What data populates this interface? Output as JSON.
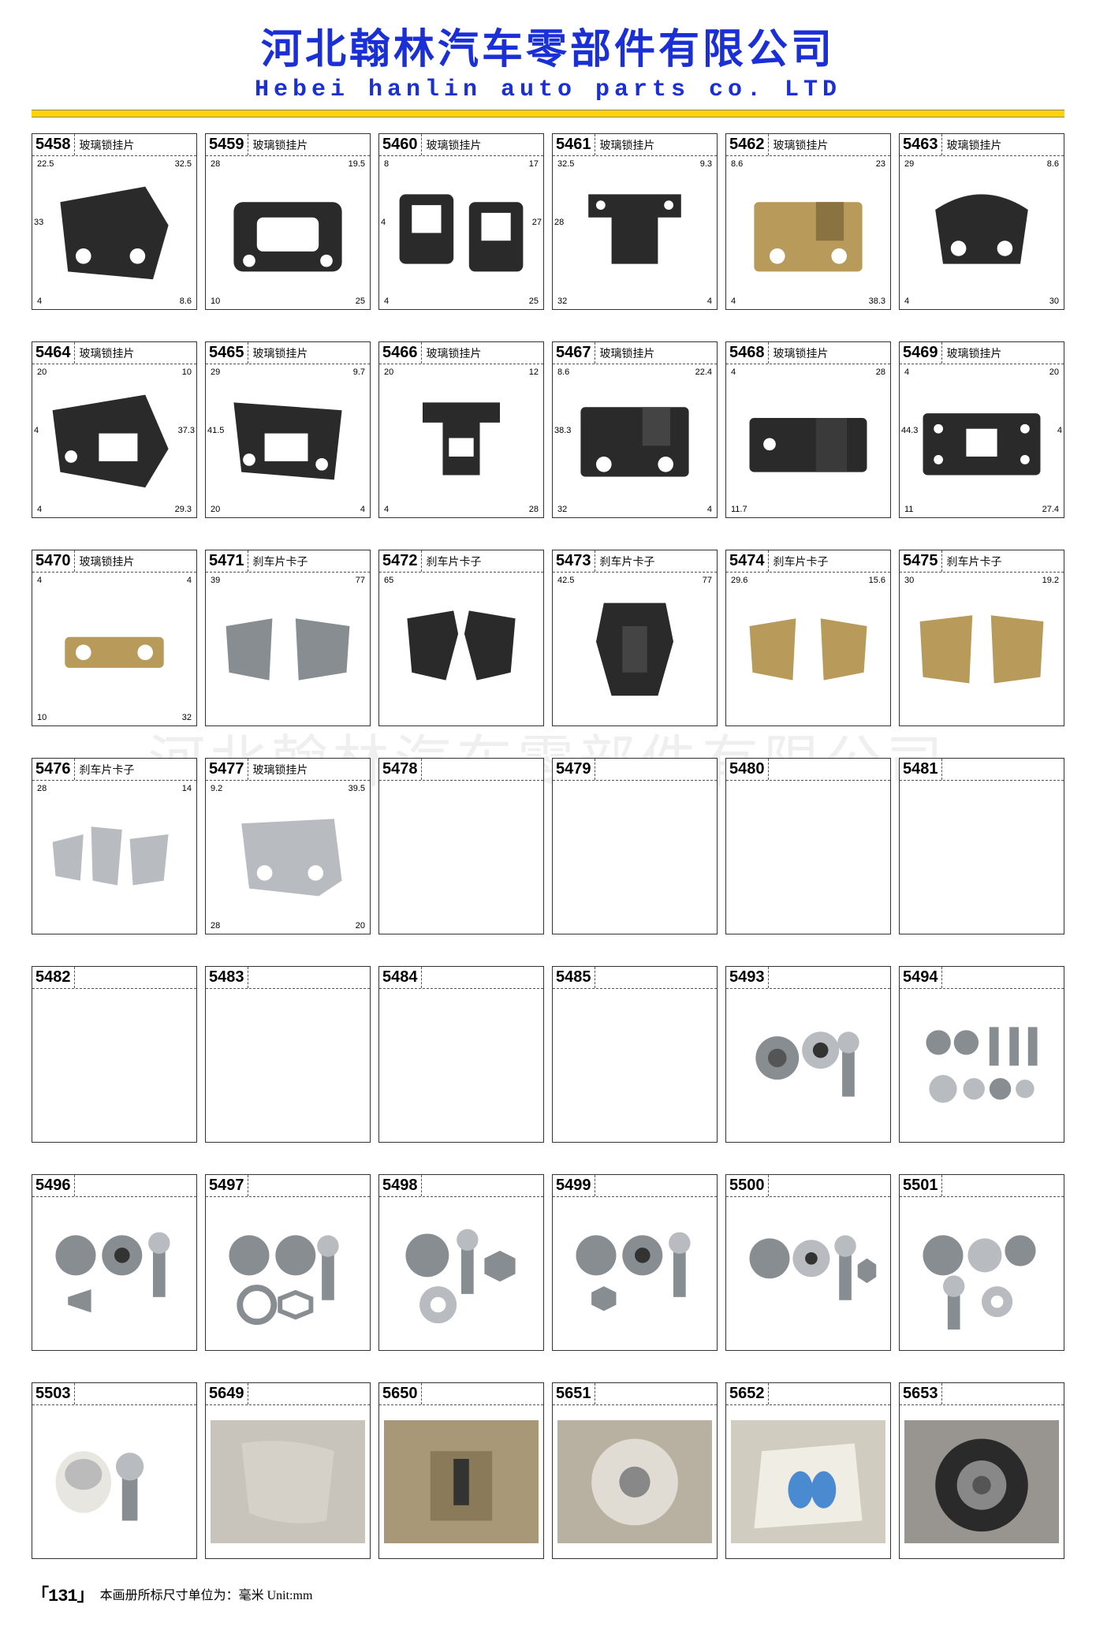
{
  "header": {
    "title_cn": "河北翰林汽车零部件有限公司",
    "title_en": "Hebei hanlin auto parts co. LTD",
    "title_cn_color": "#1a2fd6",
    "title_en_color": "#1a2fd6",
    "rule_color": "#ffd400"
  },
  "watermark": "河北翰林汽车零部件有限公司",
  "footer": {
    "page_no": "「131」",
    "note": "本画册所标尺寸单位为：毫米   Unit:mm"
  },
  "name_glass": "玻璃锁挂片",
  "name_brake": "刹车片卡子",
  "items": [
    {
      "code": "5458",
      "name": "玻璃锁挂片",
      "shape": "bracket-dark",
      "dims": [
        "22.5",
        "32.5",
        "4",
        "8.6",
        "33"
      ]
    },
    {
      "code": "5459",
      "name": "玻璃锁挂片",
      "shape": "frame-dark",
      "dims": [
        "28",
        "19.5",
        "10",
        "25"
      ]
    },
    {
      "code": "5460",
      "name": "玻璃锁挂片",
      "shape": "double-clip",
      "dims": [
        "8",
        "17",
        "4",
        "25",
        "4",
        "27"
      ]
    },
    {
      "code": "5461",
      "name": "玻璃锁挂片",
      "shape": "u-bracket",
      "dims": [
        "32.5",
        "9.3",
        "32",
        "4",
        "28"
      ]
    },
    {
      "code": "5462",
      "name": "玻璃锁挂片",
      "shape": "plate-brass",
      "dims": [
        "8.6",
        "23",
        "4",
        "38.3"
      ]
    },
    {
      "code": "5463",
      "name": "玻璃锁挂片",
      "shape": "bracket-dark2",
      "dims": [
        "29",
        "8.6",
        "4",
        "30"
      ]
    },
    {
      "code": "5464",
      "name": "玻璃锁挂片",
      "shape": "bracket-dark3",
      "dims": [
        "20",
        "10",
        "4",
        "29.3",
        "4",
        "37.3"
      ]
    },
    {
      "code": "5465",
      "name": "玻璃锁挂片",
      "shape": "frame-angle",
      "dims": [
        "29",
        "9.7",
        "20",
        "4",
        "41.5"
      ]
    },
    {
      "code": "5466",
      "name": "玻璃锁挂片",
      "shape": "u-bracket-dark",
      "dims": [
        "20",
        "12",
        "4",
        "28"
      ]
    },
    {
      "code": "5467",
      "name": "玻璃锁挂片",
      "shape": "plate-dark",
      "dims": [
        "8.6",
        "22.4",
        "32",
        "4",
        "38.3"
      ]
    },
    {
      "code": "5468",
      "name": "玻璃锁挂片",
      "shape": "plate-wide",
      "dims": [
        "4",
        "28",
        "11.7"
      ]
    },
    {
      "code": "5469",
      "name": "玻璃锁挂片",
      "shape": "plate-holes",
      "dims": [
        "4",
        "20",
        "11",
        "27.4",
        "44.3",
        "4"
      ]
    },
    {
      "code": "5470",
      "name": "玻璃锁挂片",
      "shape": "plate-brass2",
      "dims": [
        "4",
        "4",
        "10",
        "32"
      ]
    },
    {
      "code": "5471",
      "name": "刹车片卡子",
      "shape": "clip-pair",
      "dims": [
        "39",
        "77"
      ]
    },
    {
      "code": "5472",
      "name": "刹车片卡子",
      "shape": "clip-complex",
      "dims": [
        "65"
      ]
    },
    {
      "code": "5473",
      "name": "刹车片卡子",
      "shape": "clip-tall",
      "dims": [
        "42.5",
        "77"
      ]
    },
    {
      "code": "5474",
      "name": "刹车片卡子",
      "shape": "clip-brass-pair",
      "dims": [
        "29.6",
        "15.6"
      ]
    },
    {
      "code": "5475",
      "name": "刹车片卡子",
      "shape": "clip-wide-pair",
      "dims": [
        "30",
        "19.2"
      ]
    },
    {
      "code": "5476",
      "name": "刹车片卡子",
      "shape": "clip-multi",
      "dims": [
        "28",
        "14"
      ]
    },
    {
      "code": "5477",
      "name": "玻璃锁挂片",
      "shape": "bracket-silver",
      "dims": [
        "9.2",
        "39.5",
        "28",
        "20"
      ]
    },
    {
      "code": "5478",
      "name": "",
      "shape": "empty",
      "dims": []
    },
    {
      "code": "5479",
      "name": "",
      "shape": "empty",
      "dims": []
    },
    {
      "code": "5480",
      "name": "",
      "shape": "empty",
      "dims": []
    },
    {
      "code": "5481",
      "name": "",
      "shape": "empty",
      "dims": []
    },
    {
      "code": "5482",
      "name": "",
      "shape": "empty",
      "dims": []
    },
    {
      "code": "5483",
      "name": "",
      "shape": "empty",
      "dims": []
    },
    {
      "code": "5484",
      "name": "",
      "shape": "empty",
      "dims": []
    },
    {
      "code": "5485",
      "name": "",
      "shape": "empty",
      "dims": []
    },
    {
      "code": "5493",
      "name": "",
      "shape": "bolt-set-1",
      "dims": []
    },
    {
      "code": "5494",
      "name": "",
      "shape": "bolt-set-2",
      "dims": []
    },
    {
      "code": "5496",
      "name": "",
      "shape": "bolt-set-3",
      "dims": []
    },
    {
      "code": "5497",
      "name": "",
      "shape": "bolt-set-4",
      "dims": []
    },
    {
      "code": "5498",
      "name": "",
      "shape": "bolt-set-5",
      "dims": []
    },
    {
      "code": "5499",
      "name": "",
      "shape": "bolt-set-6",
      "dims": []
    },
    {
      "code": "5500",
      "name": "",
      "shape": "bolt-set-7",
      "dims": []
    },
    {
      "code": "5501",
      "name": "",
      "shape": "bolt-set-8",
      "dims": []
    },
    {
      "code": "5503",
      "name": "",
      "shape": "bushing-bolt",
      "dims": []
    },
    {
      "code": "5649",
      "name": "",
      "shape": "photo-seat",
      "dims": []
    },
    {
      "code": "5650",
      "name": "",
      "shape": "photo-gear",
      "dims": []
    },
    {
      "code": "5651",
      "name": "",
      "shape": "photo-wheel",
      "dims": []
    },
    {
      "code": "5652",
      "name": "",
      "shape": "photo-mat",
      "dims": []
    },
    {
      "code": "5653",
      "name": "",
      "shape": "photo-tire",
      "dims": []
    }
  ],
  "shape_colors": {
    "dark_metal": "#2a2a2a",
    "brass": "#b89a5a",
    "silver": "#b8bcc0",
    "steel": "#888d92",
    "photo_bg": "#c8c4bc"
  }
}
